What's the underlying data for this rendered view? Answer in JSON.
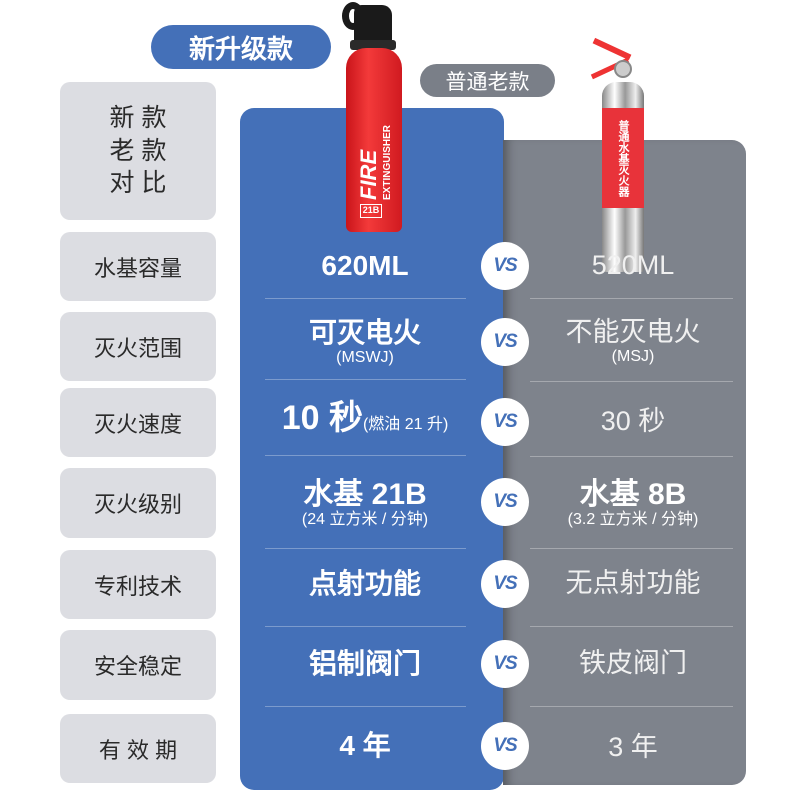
{
  "badges": {
    "new": "新升级款",
    "old": "普通老款"
  },
  "header_label": [
    "新 款",
    "老 款",
    "对 比"
  ],
  "new_product": {
    "label_big": "FIRE",
    "label_small": "EXTINGUISHER",
    "rating": "21B"
  },
  "old_product": {
    "label": "普通水基灭火器"
  },
  "vs_label": "VS",
  "colors": {
    "new": "#4470b8",
    "old": "#7e838c",
    "label_bg": "#dcdde2"
  },
  "rows": [
    {
      "label": "水基容量",
      "new": "620ML",
      "new_sub": "",
      "old": "520ML",
      "old_sub": ""
    },
    {
      "label": "灭火范围",
      "new": "可灭电火",
      "new_sub": "(MSWJ)",
      "old": "不能灭电火",
      "old_sub": "(MSJ)"
    },
    {
      "label": "灭火速度",
      "new": "10 秒",
      "new_sub": "(燃油 21 升)",
      "old": "30 秒",
      "old_sub": ""
    },
    {
      "label": "灭火级别",
      "new": "水基 21B",
      "new_sub": "(24 立方米 / 分钟)",
      "old": "水基 8B",
      "old_sub": "(3.2 立方米 / 分钟)"
    },
    {
      "label": "专利技术",
      "new": "点射功能",
      "new_sub": "",
      "old": "无点射功能",
      "old_sub": ""
    },
    {
      "label": "安全稳定",
      "new": "铝制阀门",
      "new_sub": "",
      "old": "铁皮阀门",
      "old_sub": ""
    },
    {
      "label": "有 效 期",
      "new": "4 年",
      "new_sub": "",
      "old": "3 年",
      "old_sub": ""
    }
  ]
}
